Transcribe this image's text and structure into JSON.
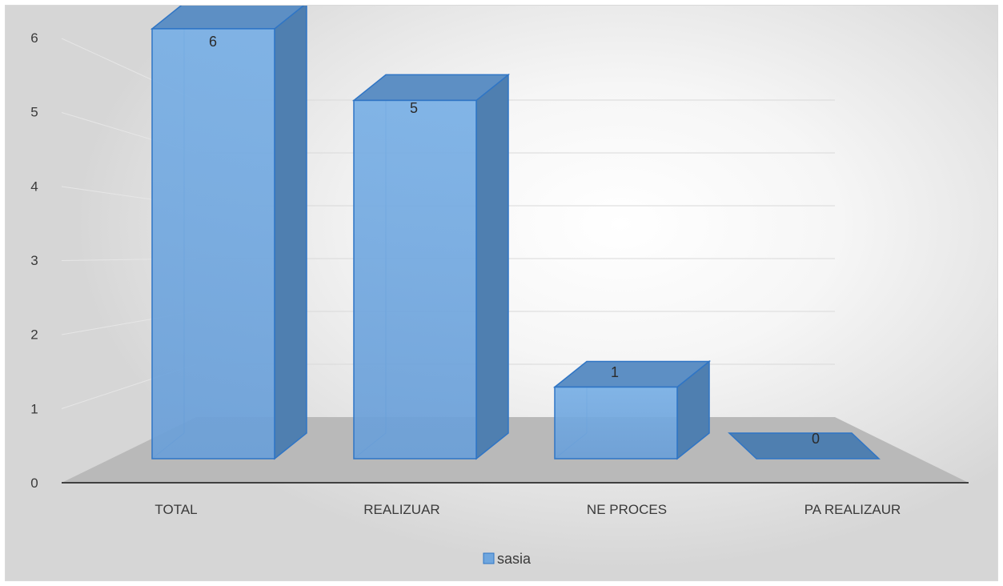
{
  "chart_data": {
    "type": "bar",
    "style": "3d-column",
    "categories": [
      "TOTAL",
      "REALIZUAR",
      "NE PROCES",
      "PA REALIZAUR"
    ],
    "series": [
      {
        "name": "sasia",
        "values": [
          6,
          5,
          1,
          0
        ]
      }
    ],
    "data_labels": [
      "6",
      "5",
      "1",
      "0"
    ],
    "y_ticks": [
      "0",
      "1",
      "2",
      "3",
      "4",
      "5",
      "6"
    ],
    "ylim": [
      0,
      6
    ],
    "grid": true,
    "legend": "bottom",
    "title": "",
    "xlabel": "",
    "ylabel": "",
    "colors": {
      "bar_front": "#6fa6de",
      "bar_side": "#4f7fb0",
      "bar_top": "#5d8fc4",
      "bar_edge": "#2f75c5",
      "floor": "#b9b9b9",
      "axis": "#404040",
      "grid": "#d9d9d9"
    }
  }
}
